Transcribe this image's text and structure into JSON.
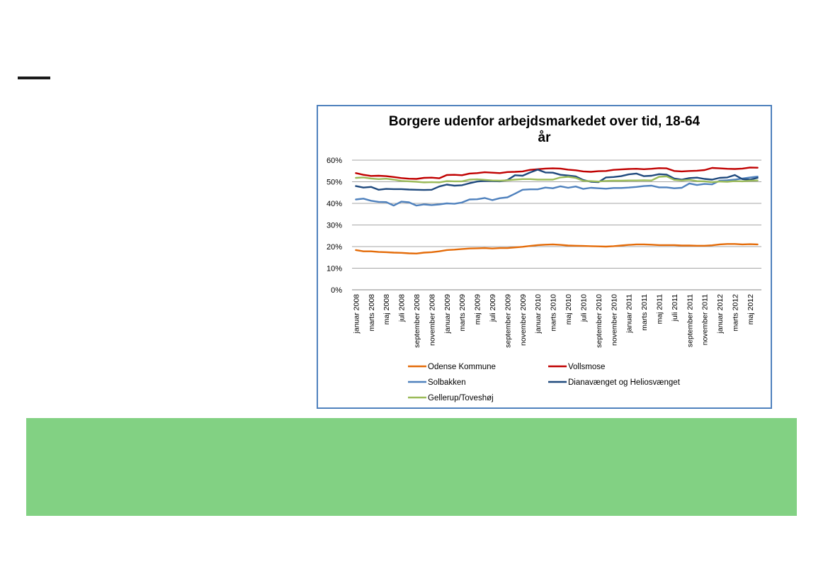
{
  "colors": {
    "frame": "#4f81bd",
    "band": "#82d183",
    "dash": "#1a1a1a"
  },
  "chart_data": {
    "type": "line",
    "title_line1": "Borgere udenfor arbejdsmarkedet over tid, 18-64",
    "title_line2": "år",
    "y_ticks": [
      "0%",
      "10%",
      "20%",
      "30%",
      "40%",
      "50%",
      "60%"
    ],
    "ylim": [
      0,
      60
    ],
    "grid": "horizontal",
    "legend_position": "bottom",
    "x_tick_labels": [
      "januar 2008",
      "marts 2008",
      "maj 2008",
      "juli 2008",
      "september 2008",
      "november 2008",
      "januar 2009",
      "marts 2009",
      "maj 2009",
      "juli 2009",
      "september 2009",
      "november 2009",
      "januar 2010",
      "marts 2010",
      "maj 2010",
      "juli 2010",
      "september 2010",
      "november 2010",
      "januar 2011",
      "marts 2011",
      "maj 2011",
      "juli 2011",
      "september 2011",
      "november 2011",
      "januar 2012",
      "marts 2012",
      "maj 2012"
    ],
    "x_count": 54,
    "series": [
      {
        "name": "Odense Kommune",
        "color": "#e46c0a",
        "values": [
          18.4,
          17.8,
          17.8,
          17.5,
          17.4,
          17.2,
          17.1,
          16.9,
          16.8,
          17.2,
          17.4,
          17.8,
          18.4,
          18.6,
          18.9,
          19.1,
          19.2,
          19.3,
          19.1,
          19.3,
          19.3,
          19.6,
          19.9,
          20.3,
          20.7,
          20.9,
          21.0,
          20.8,
          20.5,
          20.4,
          20.3,
          20.2,
          20.1,
          20.0,
          20.2,
          20.5,
          20.8,
          21.0,
          21.0,
          20.9,
          20.7,
          20.7,
          20.7,
          20.5,
          20.5,
          20.4,
          20.4,
          20.6,
          21.0,
          21.2,
          21.2,
          21.0,
          21.1,
          21.0
        ]
      },
      {
        "name": "Vollsmose",
        "color": "#c00000",
        "values": [
          54.0,
          53.2,
          52.7,
          52.8,
          52.6,
          52.2,
          51.7,
          51.4,
          51.3,
          51.8,
          51.9,
          51.6,
          53.1,
          53.2,
          53.0,
          53.8,
          54.0,
          54.4,
          54.2,
          54.0,
          54.5,
          54.6,
          54.8,
          55.5,
          55.8,
          56.1,
          56.2,
          56.1,
          55.6,
          55.3,
          54.8,
          54.6,
          54.9,
          55.0,
          55.5,
          55.7,
          55.9,
          56.0,
          55.8,
          56.0,
          56.3,
          56.2,
          55.0,
          54.8,
          55.0,
          55.1,
          55.4,
          56.4,
          56.2,
          56.0,
          55.9,
          56.1,
          56.6,
          56.5
        ]
      },
      {
        "name": "Solbakken",
        "color": "#4f81bd",
        "values": [
          41.8,
          42.2,
          41.2,
          40.7,
          40.6,
          39.0,
          40.8,
          40.5,
          39.0,
          39.5,
          39.2,
          39.5,
          40.0,
          39.8,
          40.4,
          41.8,
          41.9,
          42.5,
          41.5,
          42.4,
          42.8,
          44.5,
          46.3,
          46.5,
          46.5,
          47.3,
          47.0,
          47.9,
          47.2,
          47.8,
          46.7,
          47.2,
          47.0,
          46.8,
          47.1,
          47.1,
          47.3,
          47.6,
          48.0,
          48.2,
          47.4,
          47.4,
          47.0,
          47.2,
          49.2,
          48.5,
          49.0,
          48.8,
          50.5,
          50.7,
          51.0,
          51.5,
          52.0,
          52.4
        ]
      },
      {
        "name": "Dianavænget og Heliosvænget",
        "color": "#1f497d",
        "values": [
          48.0,
          47.3,
          47.6,
          46.3,
          46.7,
          46.6,
          46.6,
          46.4,
          46.3,
          46.2,
          46.3,
          47.8,
          48.7,
          48.2,
          48.4,
          49.3,
          50.1,
          50.4,
          50.3,
          50.2,
          50.8,
          53.0,
          52.8,
          54.3,
          55.6,
          54.3,
          54.2,
          53.2,
          52.9,
          52.5,
          50.8,
          50.0,
          49.8,
          52.0,
          52.2,
          52.6,
          53.4,
          53.8,
          52.6,
          52.8,
          53.5,
          53.3,
          51.5,
          51.0,
          51.7,
          51.9,
          51.3,
          51.0,
          51.8,
          52.0,
          53.1,
          51.2,
          51.0,
          51.8
        ]
      },
      {
        "name": "Gellerup/Toveshøj",
        "color": "#9bbb59",
        "values": [
          51.8,
          52.0,
          51.5,
          51.2,
          51.4,
          51.0,
          50.4,
          50.2,
          50.0,
          49.7,
          49.8,
          49.7,
          50.3,
          50.2,
          50.2,
          51.0,
          51.1,
          50.9,
          50.6,
          50.5,
          50.7,
          51.0,
          51.2,
          51.2,
          51.0,
          51.0,
          51.0,
          52.0,
          52.3,
          51.8,
          50.4,
          50.3,
          50.1,
          50.4,
          50.5,
          50.5,
          50.6,
          50.6,
          50.7,
          50.6,
          52.3,
          52.5,
          50.9,
          50.6,
          50.9,
          50.3,
          50.2,
          49.8,
          50.1,
          50.0,
          50.3,
          50.2,
          50.5,
          50.6
        ]
      }
    ]
  }
}
